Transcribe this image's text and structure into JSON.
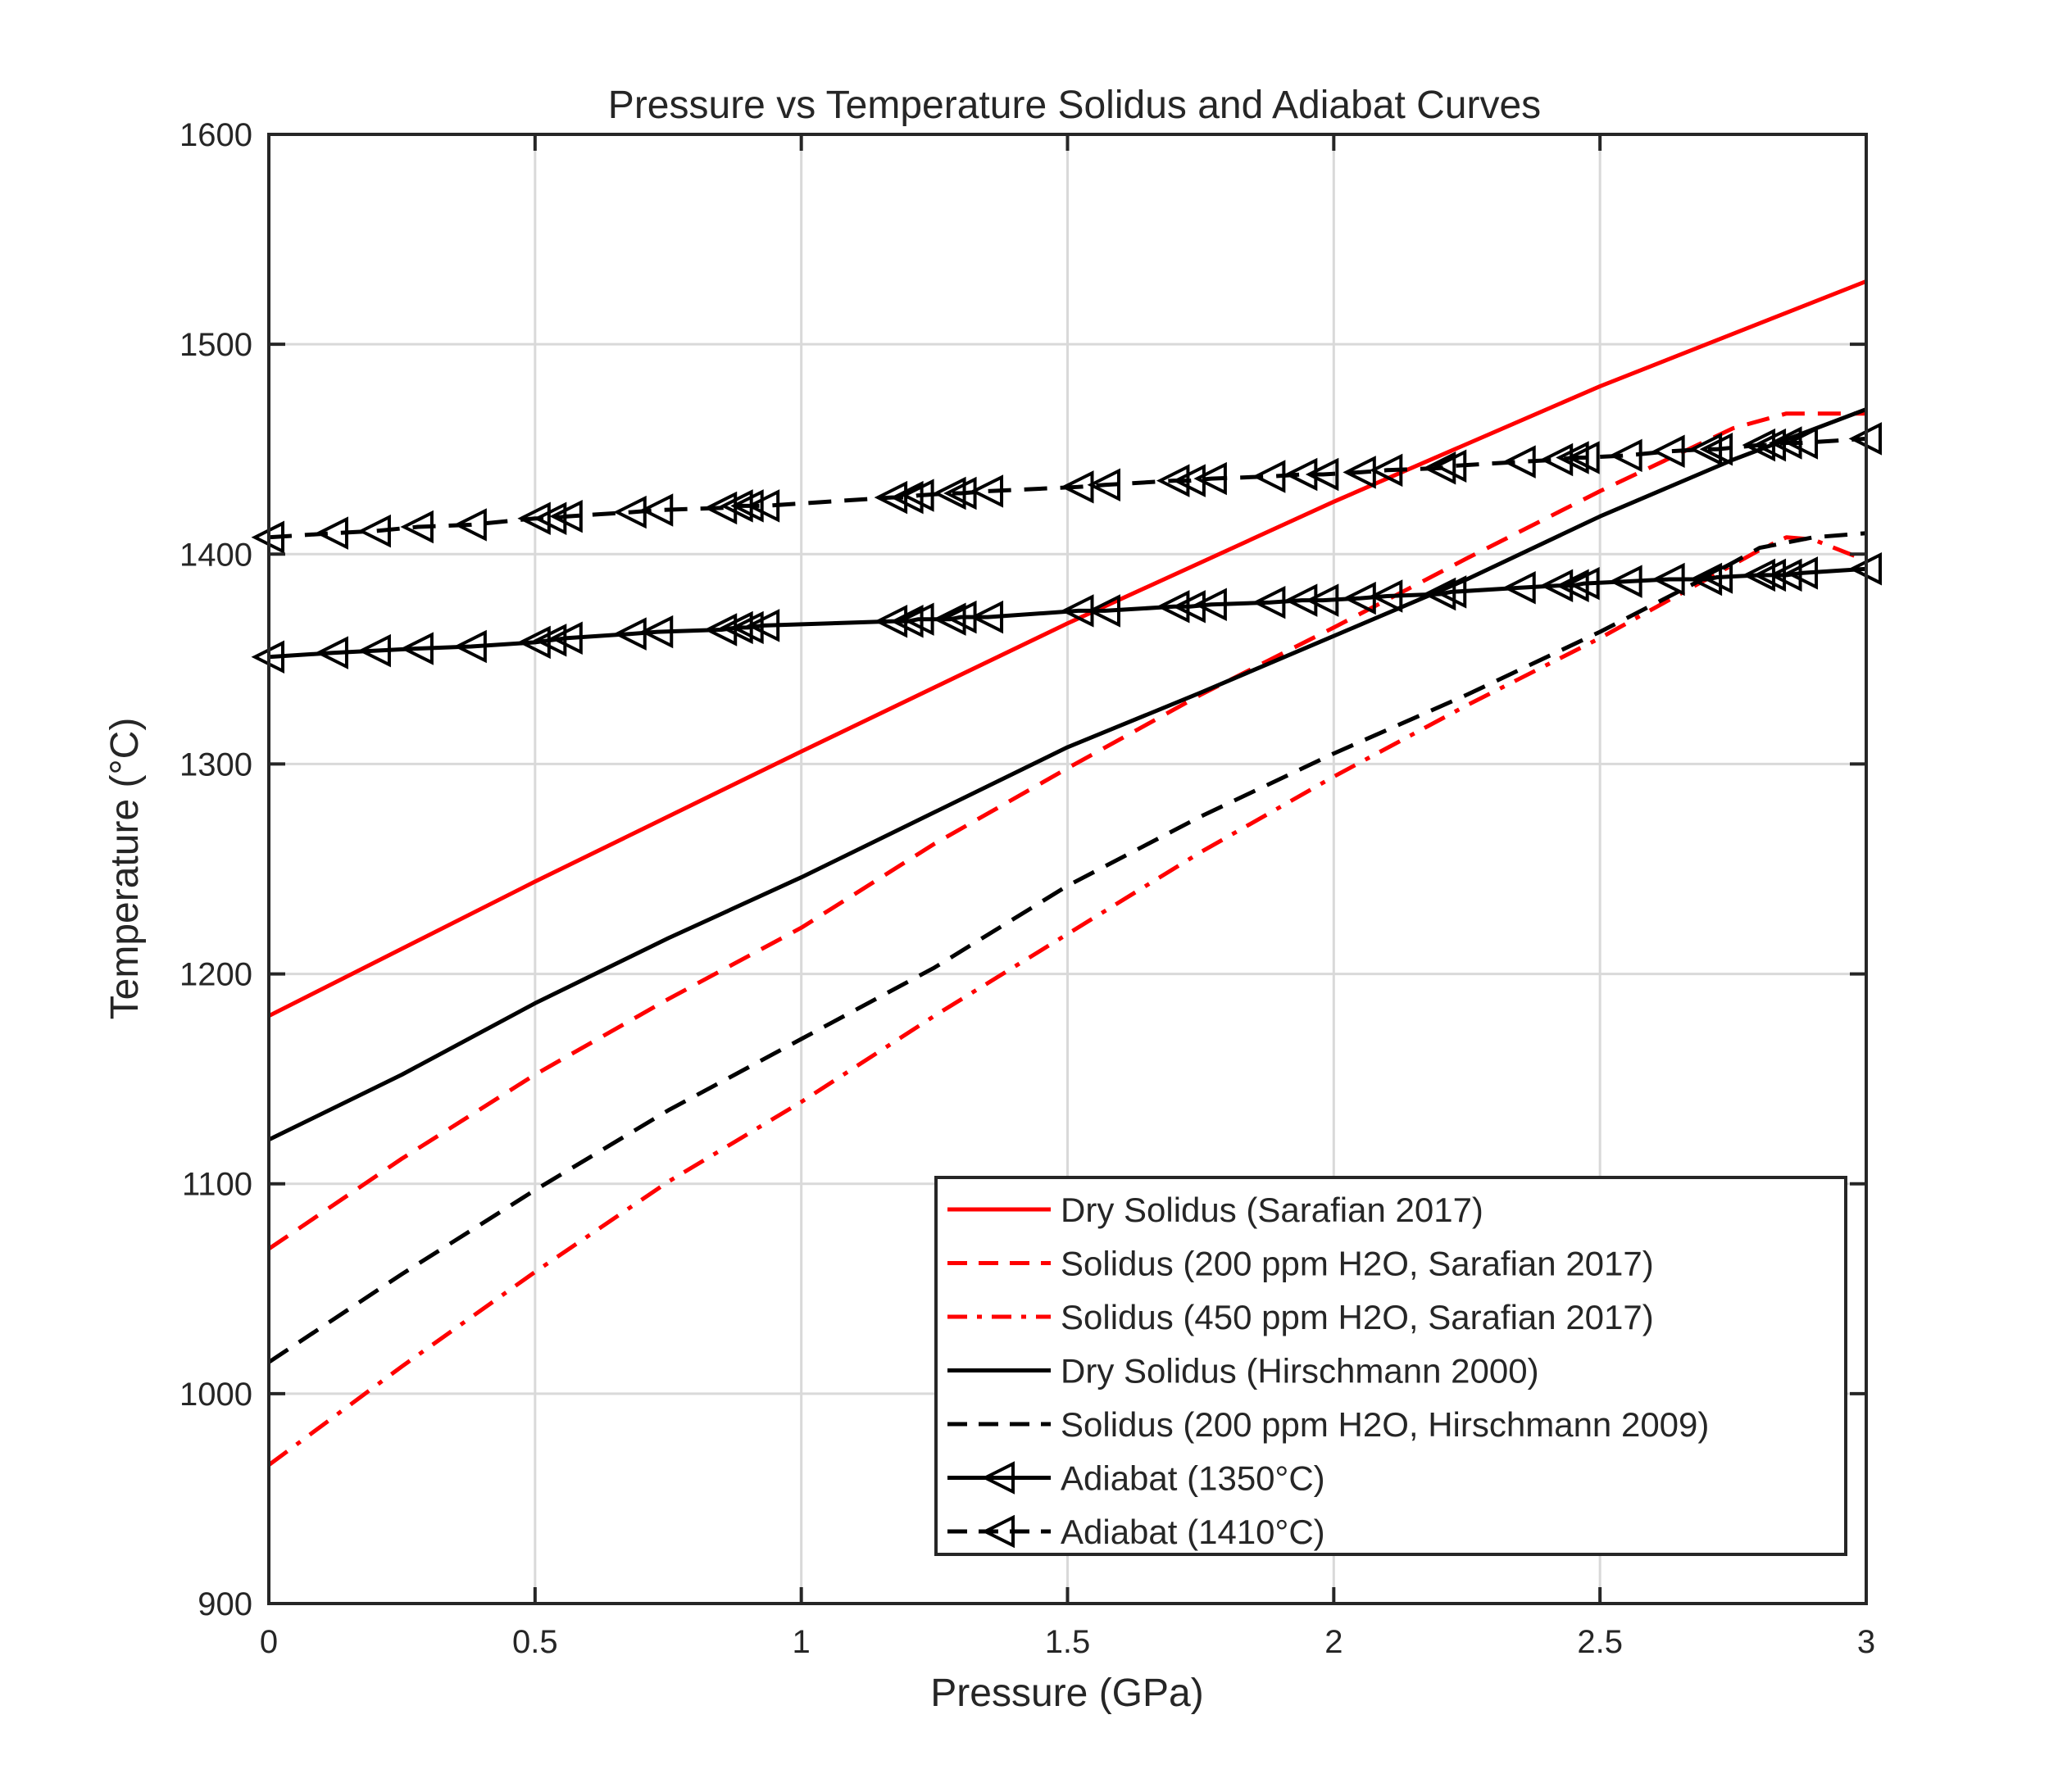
{
  "chart_data": {
    "type": "line",
    "title": "Pressure vs Temperature Solidus and Adiabat Curves",
    "xlabel": "Pressure (GPa)",
    "ylabel": "Temperature (°C)",
    "xlim": [
      0,
      3
    ],
    "ylim": [
      900,
      1600
    ],
    "xticks": [
      0,
      0.5,
      1,
      1.5,
      2,
      2.5,
      3
    ],
    "xtick_labels": [
      "0",
      "0.5",
      "1",
      "1.5",
      "2",
      "2.5",
      "3"
    ],
    "yticks": [
      900,
      1000,
      1100,
      1200,
      1300,
      1400,
      1500,
      1600
    ],
    "ytick_labels": [
      "900",
      "1000",
      "1100",
      "1200",
      "1300",
      "1400",
      "1500",
      "1600"
    ],
    "grid": true,
    "legend_position": "bottom-right",
    "series": [
      {
        "name": "Dry Solidus (Sarafian 2017)",
        "color": "#ff0000",
        "line_style": "solid",
        "marker": "none",
        "x": [
          0,
          0.5,
          1,
          1.5,
          2,
          2.5,
          3
        ],
        "y": [
          1180,
          1244,
          1306,
          1367,
          1425,
          1480,
          1530
        ]
      },
      {
        "name": "Solidus (200 ppm H2O, Sarafian 2017)",
        "color": "#ff0000",
        "line_style": "dashed",
        "marker": "none",
        "x": [
          0,
          0.25,
          0.5,
          0.75,
          1,
          1.25,
          1.5,
          1.75,
          2,
          2.25,
          2.5,
          2.75,
          2.85,
          3
        ],
        "y": [
          1069,
          1112,
          1152,
          1188,
          1222,
          1262,
          1298,
          1333,
          1365,
          1398,
          1430,
          1460,
          1467,
          1467
        ]
      },
      {
        "name": "Solidus (450 ppm H2O, Sarafian 2017)",
        "color": "#ff0000",
        "line_style": "dashdot",
        "marker": "none",
        "x": [
          0,
          0.25,
          0.5,
          0.75,
          1,
          1.25,
          1.5,
          1.75,
          2,
          2.25,
          2.5,
          2.7,
          2.8,
          2.85,
          2.9,
          3
        ],
        "y": [
          966,
          1013,
          1058,
          1101,
          1139,
          1180,
          1219,
          1258,
          1294,
          1328,
          1360,
          1388,
          1402,
          1408,
          1407,
          1397
        ]
      },
      {
        "name": "Dry Solidus (Hirschmann 2000)",
        "color": "#000000",
        "line_style": "solid",
        "marker": "none",
        "x": [
          0,
          0.25,
          0.5,
          0.75,
          1,
          1.25,
          1.5,
          1.75,
          2,
          2.25,
          2.5,
          2.75,
          3
        ],
        "y": [
          1121,
          1152,
          1186,
          1217,
          1246,
          1277,
          1308,
          1334,
          1361,
          1388,
          1418,
          1445,
          1469
        ]
      },
      {
        "name": "Solidus (200 ppm H2O, Hirschmann 2009)",
        "color": "#000000",
        "line_style": "dashed",
        "marker": "none",
        "x": [
          0,
          0.25,
          0.5,
          0.75,
          1,
          1.25,
          1.5,
          1.75,
          2,
          2.25,
          2.5,
          2.7,
          2.8,
          2.9,
          3
        ],
        "y": [
          1015,
          1057,
          1097,
          1135,
          1169,
          1203,
          1242,
          1275,
          1305,
          1333,
          1363,
          1389,
          1403,
          1408,
          1410
        ]
      },
      {
        "name": "Adiabat (1350°C)",
        "color": "#000000",
        "line_style": "solid",
        "marker": "triangle-left",
        "x": [
          0,
          0.12,
          0.2,
          0.28,
          0.38,
          0.5,
          0.53,
          0.56,
          0.68,
          0.73,
          0.85,
          0.88,
          0.9,
          0.93,
          1.17,
          1.2,
          1.22,
          1.28,
          1.3,
          1.35,
          1.52,
          1.57,
          1.7,
          1.73,
          1.77,
          1.88,
          1.94,
          1.98,
          2.05,
          2.1,
          2.2,
          2.22,
          2.35,
          2.42,
          2.45,
          2.47,
          2.55,
          2.63,
          2.7,
          2.72,
          2.8,
          2.82,
          2.85,
          2.88,
          3
        ],
        "y": [
          1351,
          1353,
          1354,
          1355,
          1356,
          1358,
          1359,
          1360,
          1362,
          1363,
          1364,
          1365,
          1365,
          1366,
          1368,
          1368,
          1369,
          1369,
          1370,
          1370,
          1373,
          1373,
          1375,
          1375,
          1376,
          1377,
          1378,
          1378,
          1379,
          1380,
          1381,
          1382,
          1384,
          1385,
          1385,
          1386,
          1387,
          1388,
          1388,
          1389,
          1390,
          1390,
          1390,
          1391,
          1393
        ]
      },
      {
        "name": "Adiabat (1410°C)",
        "color": "#000000",
        "line_style": "dashed",
        "marker": "triangle-left",
        "x": [
          0,
          0.12,
          0.2,
          0.28,
          0.38,
          0.5,
          0.53,
          0.56,
          0.68,
          0.73,
          0.85,
          0.88,
          0.9,
          0.93,
          1.17,
          1.2,
          1.22,
          1.28,
          1.3,
          1.35,
          1.52,
          1.57,
          1.7,
          1.73,
          1.77,
          1.88,
          1.94,
          1.98,
          2.05,
          2.1,
          2.2,
          2.22,
          2.35,
          2.42,
          2.45,
          2.47,
          2.55,
          2.63,
          2.7,
          2.72,
          2.8,
          2.82,
          2.85,
          2.88,
          3
        ],
        "y": [
          1408,
          1410,
          1411,
          1413,
          1414,
          1417,
          1417,
          1418,
          1420,
          1421,
          1422,
          1423,
          1423,
          1423,
          1427,
          1427,
          1428,
          1429,
          1429,
          1430,
          1432,
          1433,
          1435,
          1435,
          1436,
          1437,
          1438,
          1438,
          1439,
          1440,
          1441,
          1442,
          1444,
          1445,
          1446,
          1446,
          1447,
          1449,
          1450,
          1450,
          1452,
          1452,
          1453,
          1453,
          1455
        ]
      }
    ]
  }
}
